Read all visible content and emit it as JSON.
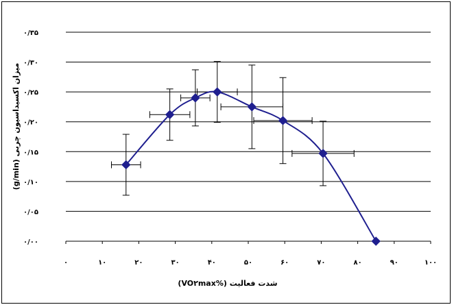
{
  "chart_data": {
    "type": "scatter",
    "xlabel": "شدت فعالیت (%VO۲max)",
    "ylabel": "میزان اکسیداسیون چربی (g/min)",
    "xlim": [
      0,
      100
    ],
    "ylim": [
      0,
      0.35
    ],
    "x_ticks": [
      0,
      10,
      20,
      30,
      40,
      50,
      60,
      70,
      80,
      90,
      100
    ],
    "x_tick_labels": [
      "۰",
      "۱۰",
      "۲۰",
      "۳۰",
      "۴۰",
      "۵۰",
      "۶۰",
      "۷۰",
      "۸۰",
      "۹۰",
      "۱۰۰"
    ],
    "y_ticks": [
      0,
      0.05,
      0.1,
      0.15,
      0.2,
      0.25,
      0.3,
      0.35
    ],
    "y_tick_labels": [
      "۰/۰۰",
      "۰/۰۵",
      "۰/۱۰",
      "۰/۱۵",
      "۰/۲۰",
      "۰/۲۵",
      "۰/۳۰",
      "۰/۳۵"
    ],
    "grid": "horizontal",
    "marker": "diamond",
    "color": "#1f1f8f",
    "curve": "smooth",
    "points": [
      {
        "x": 16.5,
        "y": 0.128,
        "yerr": 0.051,
        "xerr": 4.0
      },
      {
        "x": 28.5,
        "y": 0.212,
        "yerr": 0.043,
        "xerr": 5.5
      },
      {
        "x": 35.5,
        "y": 0.24,
        "yerr": 0.047,
        "xerr": 4.0
      },
      {
        "x": 41.5,
        "y": 0.25,
        "yerr": 0.051,
        "xerr": 5.5
      },
      {
        "x": 51.0,
        "y": 0.225,
        "yerr": 0.07,
        "xerr": 8.5
      },
      {
        "x": 59.5,
        "y": 0.202,
        "yerr": 0.072,
        "xerr": 8.0
      },
      {
        "x": 70.5,
        "y": 0.147,
        "yerr": 0.054,
        "xerr": 8.5
      },
      {
        "x": 85.0,
        "y": 0.0,
        "yerr": 0,
        "xerr": 0
      }
    ]
  }
}
